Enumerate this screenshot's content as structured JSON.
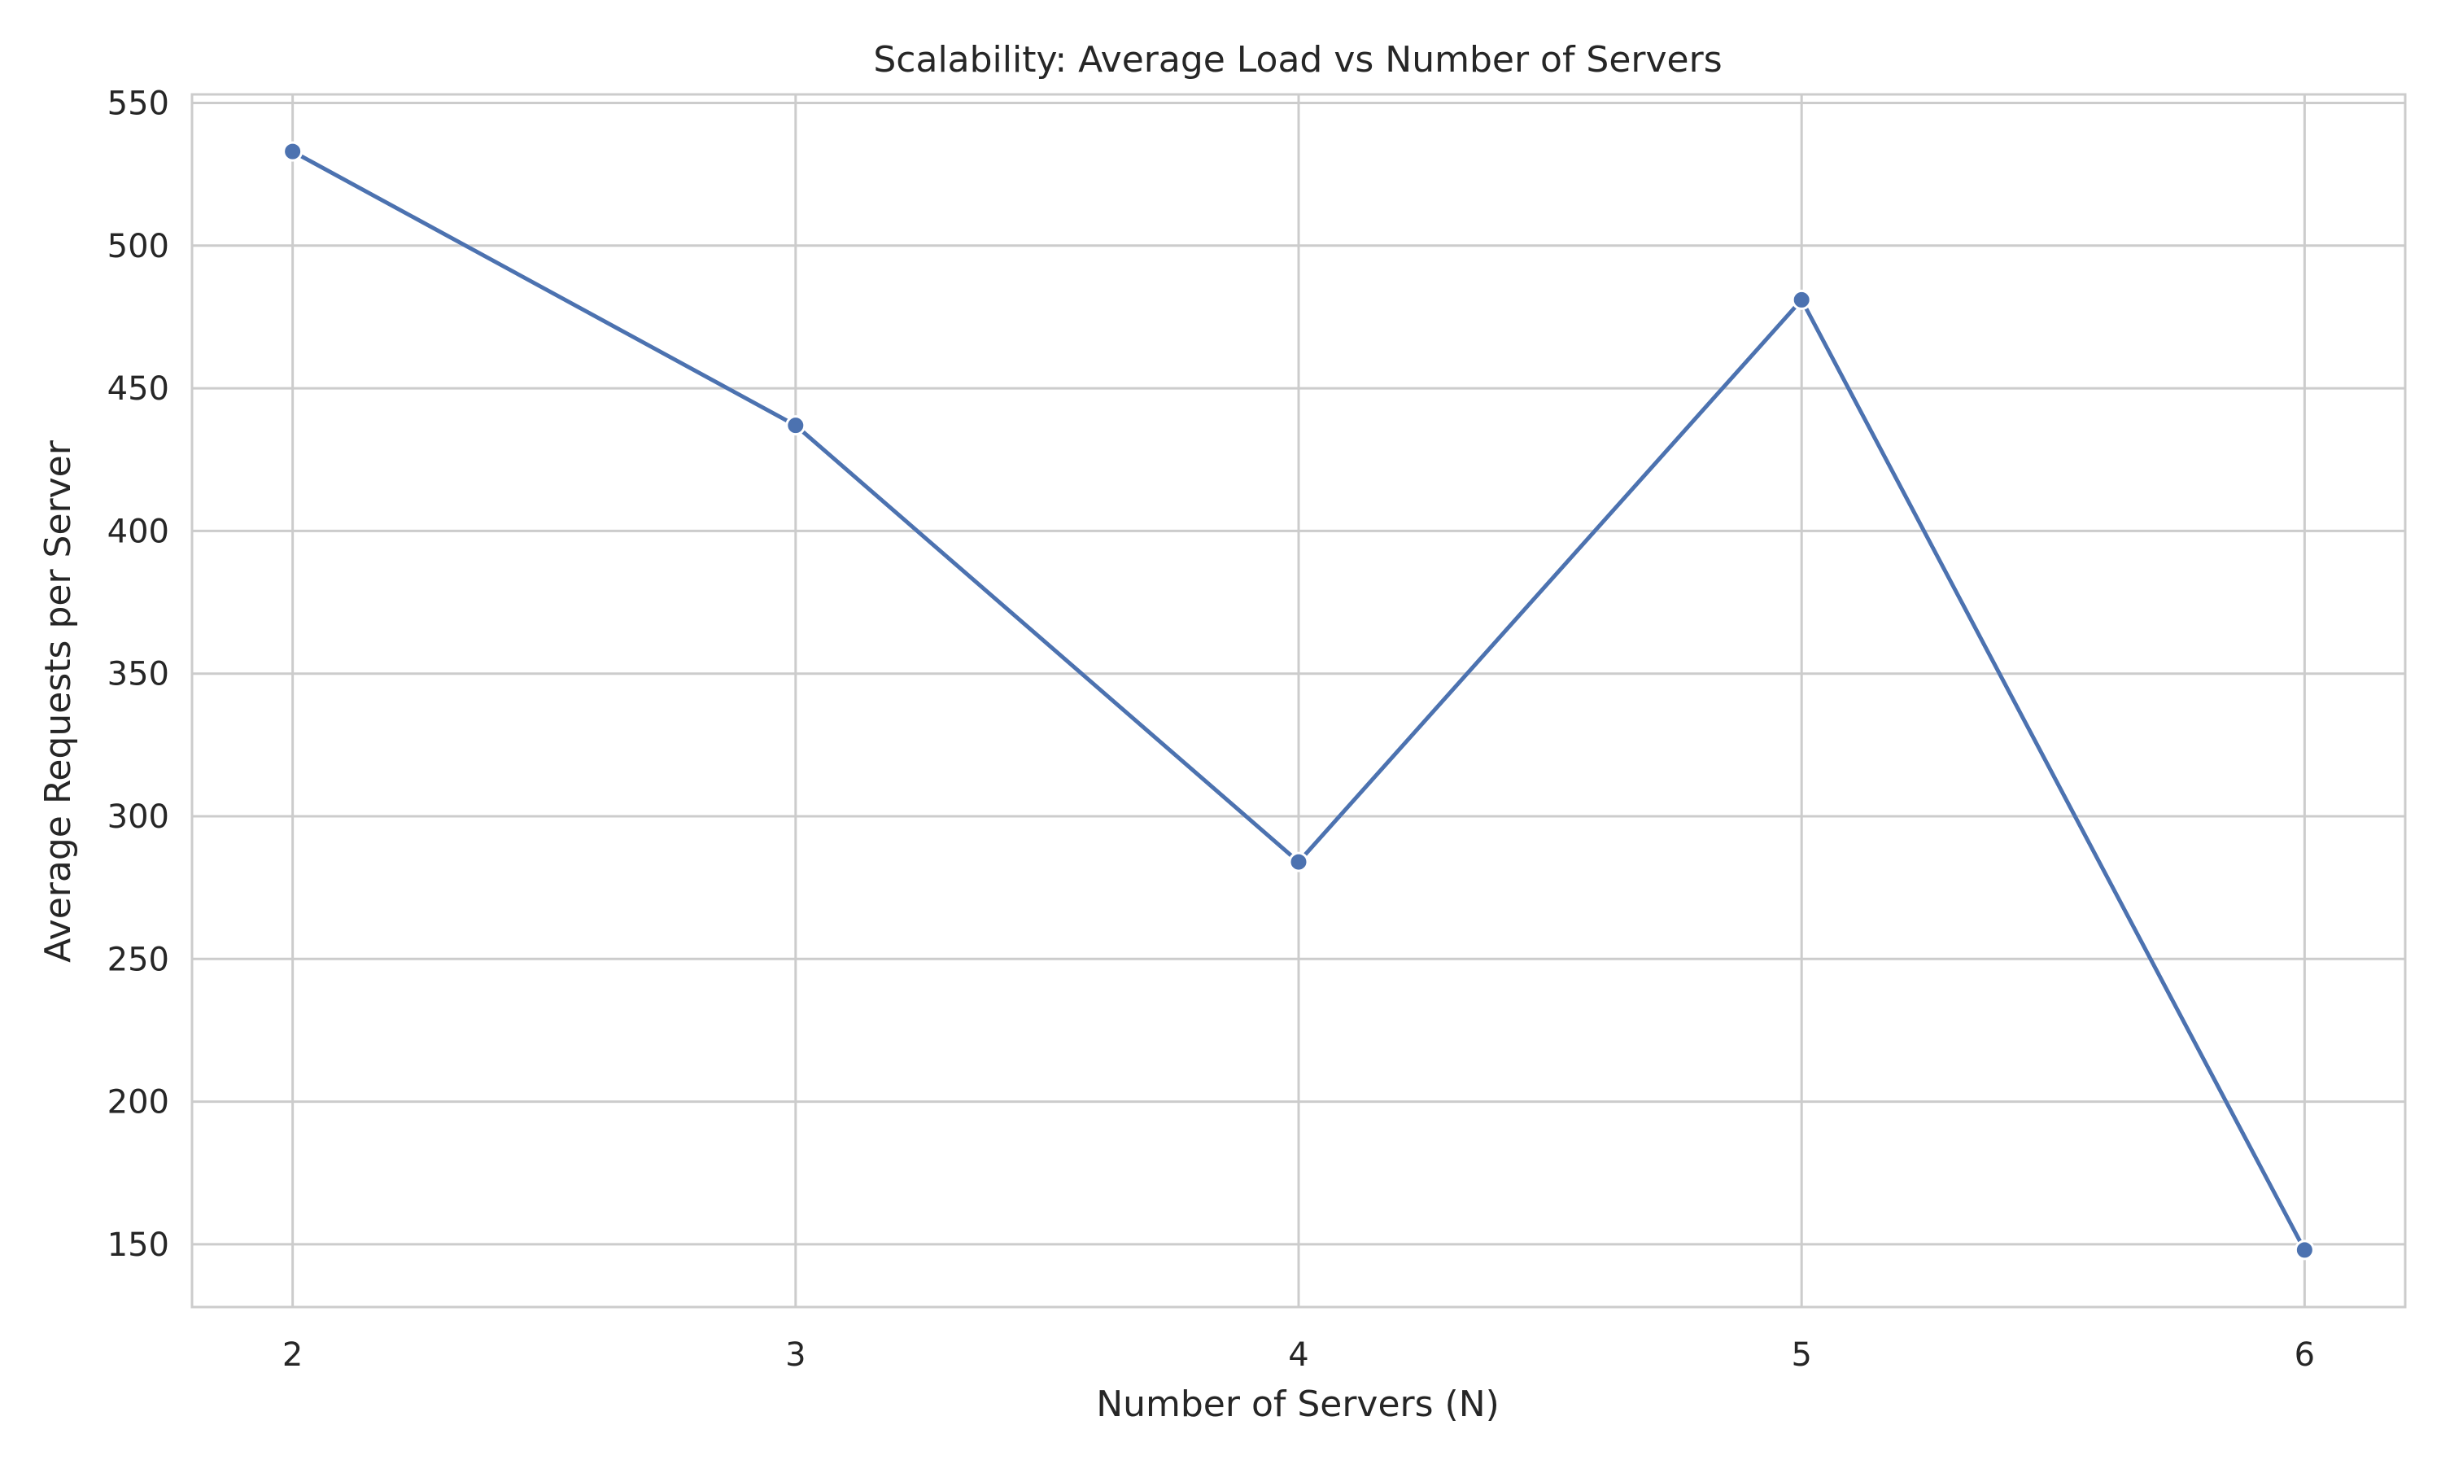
{
  "chart_data": {
    "type": "line",
    "title": "Scalability: Average Load vs Number of Servers",
    "xlabel": "Number of Servers (N)",
    "ylabel": "Average Requests per Server",
    "x": [
      2,
      3,
      4,
      5,
      6
    ],
    "series": [
      {
        "values": [
          533,
          437,
          284,
          481,
          148
        ],
        "color": "#4c72b0"
      }
    ],
    "xlim": [
      1.8,
      6.2
    ],
    "ylim": [
      128,
      553
    ],
    "xticks": [
      2,
      3,
      4,
      5,
      6
    ],
    "yticks": [
      150,
      200,
      250,
      300,
      350,
      400,
      450,
      500,
      550
    ],
    "grid": true,
    "legend": "none",
    "grid_color": "#cccccc",
    "frame_color": "#cccccc",
    "text_color": "#262626"
  }
}
